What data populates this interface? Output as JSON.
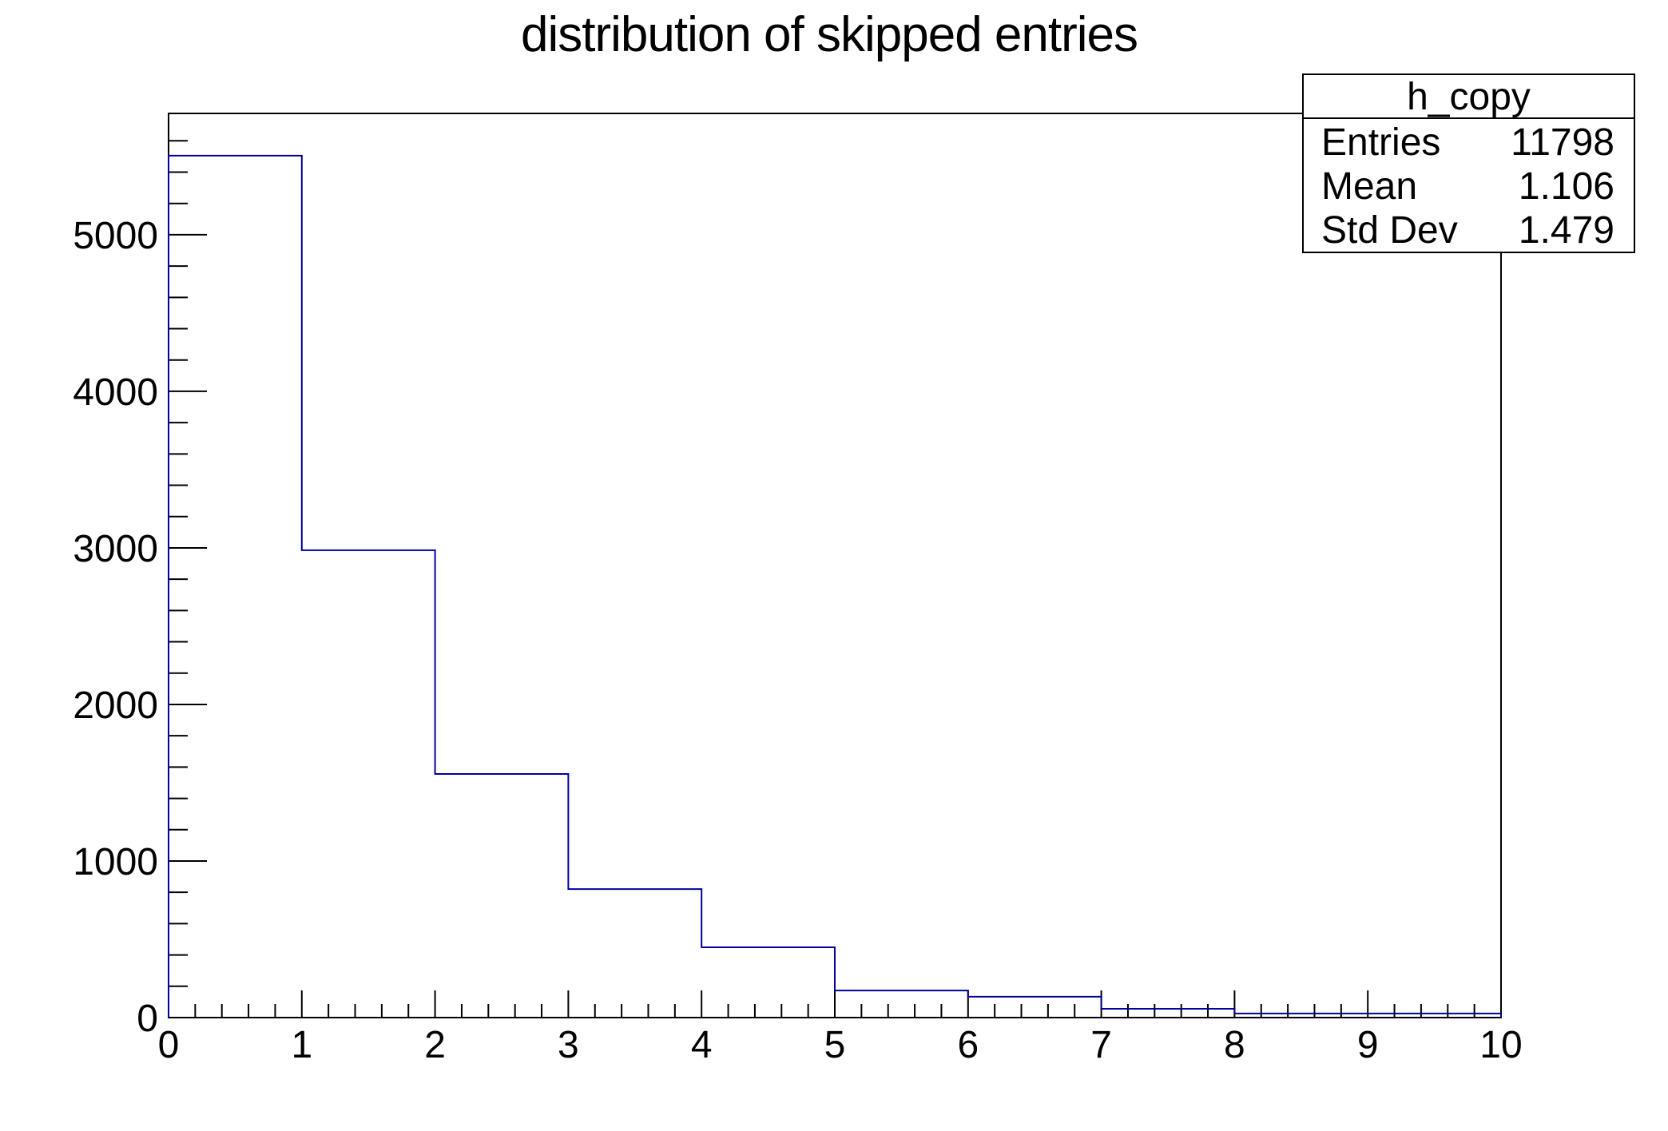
{
  "title": "distribution of skipped entries",
  "stats_box": {
    "title": "h_copy",
    "rows": [
      {
        "label": "Entries",
        "value": "11798"
      },
      {
        "label": "Mean",
        "value": "1.106"
      },
      {
        "label": "Std Dev",
        "value": "1.479"
      }
    ]
  },
  "colors": {
    "histogram_line": "#00009c",
    "axis": "#000000",
    "text": "#000000",
    "background": "#ffffff"
  },
  "chart_data": {
    "type": "bar",
    "subtype": "histogram-step",
    "title": "distribution of skipped entries",
    "xlabel": "",
    "ylabel": "",
    "bin_edges": [
      0,
      1,
      2,
      3,
      4,
      5,
      6,
      7,
      8,
      9,
      10
    ],
    "values": [
      5505,
      2985,
      1556,
      821,
      449,
      173,
      133,
      56,
      26,
      26
    ],
    "xlim": [
      0,
      10
    ],
    "ylim": [
      0,
      5775
    ],
    "x_tick_values": [
      0,
      1,
      2,
      3,
      4,
      5,
      6,
      7,
      8,
      9,
      10
    ],
    "x_tick_labels": [
      "0",
      "1",
      "2",
      "3",
      "4",
      "5",
      "6",
      "7",
      "8",
      "9",
      "10"
    ],
    "y_tick_values": [
      0,
      1000,
      2000,
      3000,
      4000,
      5000
    ],
    "y_tick_labels": [
      "0",
      "1000",
      "2000",
      "3000",
      "4000",
      "5000"
    ],
    "x_minor_step": 0.2,
    "y_minor_step": 200,
    "grid": false,
    "legend_position": "stats-box-top-right"
  }
}
